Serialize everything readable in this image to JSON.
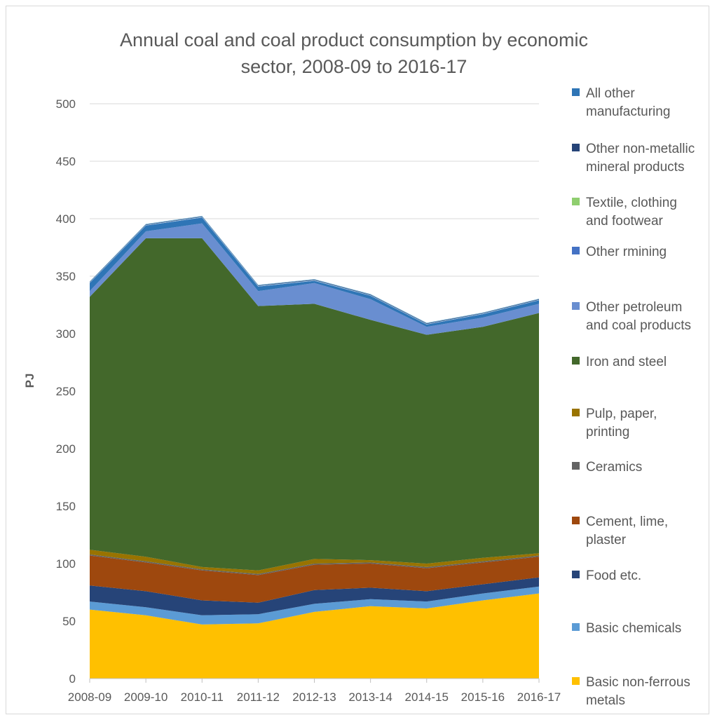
{
  "chart_data": {
    "type": "area",
    "stacked": true,
    "title": [
      "Annual coal and coal product consumption by economic",
      "sector, 2008-09 to 2016-17"
    ],
    "ylabel": "PJ",
    "xlabel": "",
    "ylim": [
      0,
      500
    ],
    "yticks": [
      0,
      50,
      100,
      150,
      200,
      250,
      300,
      350,
      400,
      450,
      500
    ],
    "grid": true,
    "legend_position": "right",
    "categories": [
      "2008-09",
      "2009-10",
      "2010-11",
      "2011-12",
      "2012-13",
      "2013-14",
      "2014-15",
      "2015-16",
      "2016-17"
    ],
    "series": [
      {
        "name": "Basic non-ferrous metals",
        "color": "#ffc000",
        "values": [
          60,
          55,
          47,
          48,
          58,
          63,
          61,
          68,
          74
        ]
      },
      {
        "name": "Basic chemicals",
        "color": "#5b9bd5",
        "values": [
          7,
          7,
          8,
          8,
          7,
          6,
          6,
          6,
          6
        ]
      },
      {
        "name": "Food etc.",
        "color": "#264478",
        "values": [
          14,
          14,
          13,
          10,
          12,
          10,
          9,
          8,
          8
        ]
      },
      {
        "name": "Cement, lime, plaster",
        "color": "#9e480e",
        "values": [
          26,
          25,
          26,
          24,
          22,
          21,
          20,
          19,
          18
        ]
      },
      {
        "name": "Ceramics",
        "color": "#636363",
        "values": [
          1,
          1,
          1,
          1,
          1,
          1,
          1,
          1,
          1
        ]
      },
      {
        "name": "Pulp, paper, printing",
        "color": "#997300",
        "values": [
          4,
          4,
          2,
          3,
          4,
          2,
          3,
          3,
          2
        ]
      },
      {
        "name": "Iron and steel",
        "color": "#43682b",
        "values": [
          220,
          277,
          286,
          230,
          222,
          209,
          199,
          201,
          209
        ]
      },
      {
        "name": "Other petroleum and coal products",
        "color": "#698ed0",
        "values": [
          5,
          6,
          13,
          13,
          18,
          18,
          7,
          8,
          8
        ]
      },
      {
        "name": "Other rmining",
        "color": "#2e75b6",
        "values": [
          7,
          5,
          5,
          4,
          2,
          3,
          2,
          3,
          3
        ]
      },
      {
        "name": "Textile, clothing and footwear",
        "color": "#9dc3e6",
        "values": [
          0.5,
          0.5,
          0.5,
          0.5,
          0.5,
          0.5,
          0.5,
          0.5,
          0.5
        ]
      },
      {
        "name": "Other non-metallic mineral products",
        "color": "#264478",
        "values": [
          0.5,
          0.5,
          0.5,
          0.5,
          0.5,
          0.5,
          0.5,
          0.5,
          0.5
        ]
      },
      {
        "name": "All other manufacturing",
        "color": "#7fb8d8",
        "values": [
          0.5,
          0.5,
          0.5,
          0.5,
          0.5,
          0.5,
          0.5,
          0.5,
          0.5
        ]
      }
    ],
    "legend": [
      {
        "lines": [
          "All other",
          "manufacturing"
        ],
        "color": "#2e75b6"
      },
      {
        "lines": [
          "Other non-metallic",
          "mineral products"
        ],
        "color": "#264478"
      },
      {
        "lines": [
          "Textile, clothing",
          "and footwear"
        ],
        "color": "#8fce6f"
      },
      {
        "lines": [
          "Other rmining"
        ],
        "color": "#4472c4"
      },
      {
        "lines": [
          "Other petroleum",
          "and coal products"
        ],
        "color": "#698ed0"
      },
      {
        "lines": [
          "Iron and steel"
        ],
        "color": "#43682b"
      },
      {
        "lines": [
          "Pulp, paper,",
          "printing"
        ],
        "color": "#997300"
      },
      {
        "lines": [
          "Ceramics"
        ],
        "color": "#636363"
      },
      {
        "lines": [
          "Cement, lime,",
          "plaster"
        ],
        "color": "#9e480e"
      },
      {
        "lines": [
          "Food etc."
        ],
        "color": "#264478"
      },
      {
        "lines": [
          "Basic chemicals"
        ],
        "color": "#5b9bd5"
      },
      {
        "lines": [
          "Basic non-ferrous",
          "metals"
        ],
        "color": "#ffc000"
      }
    ]
  }
}
